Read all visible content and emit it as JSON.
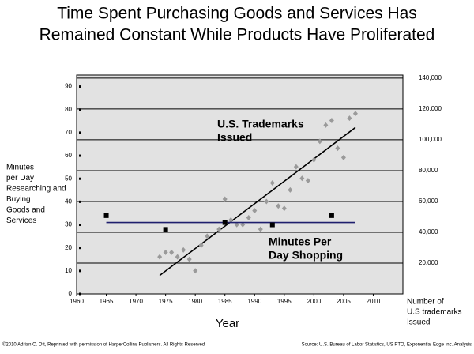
{
  "chart_data": {
    "type": "scatter",
    "title": [
      "Time Spent Purchasing Goods and Services Has",
      "Remained Constant While Products Have Proliferated"
    ],
    "x_label": "Year",
    "y_label": [
      "Minutes",
      "per Day",
      "Researching and",
      "Buying",
      "Goods and",
      "Services"
    ],
    "y2_label": [
      "Number of",
      "U.S trademarks",
      "Issued"
    ],
    "xlim": [
      1960,
      2015
    ],
    "xticks": [
      1960,
      1965,
      1970,
      1975,
      1980,
      1985,
      1990,
      1995,
      2000,
      2005,
      2010
    ],
    "ylim": [
      0,
      95
    ],
    "yticks": [
      0,
      10,
      20,
      30,
      40,
      50,
      60,
      70,
      80,
      90
    ],
    "y2lim": [
      0,
      142000
    ],
    "y2ticks": [
      {
        "value": 20000,
        "label": "20,000"
      },
      {
        "value": 40000,
        "label": "40,000"
      },
      {
        "value": 60000,
        "label": "60,000"
      },
      {
        "value": 80000,
        "label": "80,000"
      },
      {
        "value": 100000,
        "label": "100,000"
      },
      {
        "value": 120000,
        "label": "120,000"
      },
      {
        "value": 140000,
        "label": "140,000"
      }
    ],
    "grid": true,
    "series": [
      {
        "name": [
          "U.S. Trademarks",
          "Issued"
        ],
        "axis": "y2",
        "color": "#9a9a9a",
        "marker": "diamond",
        "x": [
          1974,
          1975,
          1976,
          1977,
          1978,
          1979,
          1980,
          1981,
          1982,
          1984,
          1985,
          1986,
          1987,
          1988,
          1989,
          1990,
          1991,
          1992,
          1993,
          1994,
          1995,
          1996,
          1997,
          1998,
          1999,
          2000,
          2001,
          2002,
          2003,
          2004,
          2005,
          2006,
          2007
        ],
        "values": [
          24000,
          27000,
          27000,
          24000,
          28500,
          22500,
          15000,
          31500,
          37500,
          42000,
          61500,
          48000,
          45000,
          45000,
          49500,
          54000,
          42000,
          60000,
          72000,
          57000,
          55500,
          67500,
          82500,
          75000,
          73500,
          87000,
          99000,
          109500,
          112500,
          94500,
          88500,
          114000,
          117000
        ],
        "trend": {
          "color": "#000000",
          "x": [
            1974,
            2007
          ],
          "values": [
            12000,
            108000
          ]
        }
      },
      {
        "name": [
          "Minutes Per",
          "Day Shopping"
        ],
        "axis": "y",
        "color": "#000000",
        "marker": "square",
        "x": [
          1965,
          1975,
          1985,
          1993,
          2003
        ],
        "values": [
          34,
          28,
          31,
          30,
          34
        ],
        "trend": {
          "color": "#1f1f6e",
          "x": [
            1965,
            2007
          ],
          "values": [
            31,
            31
          ]
        }
      }
    ],
    "footnote_left": "©2010 Adrian C. Ott, Reprinted with permission of HarperCollins Publishers. All Rights Reserved",
    "footnote_right": "Source: U.S. Bureau of Labor Statistics, US PTO, Exponential Edge Inc. Analysis"
  }
}
